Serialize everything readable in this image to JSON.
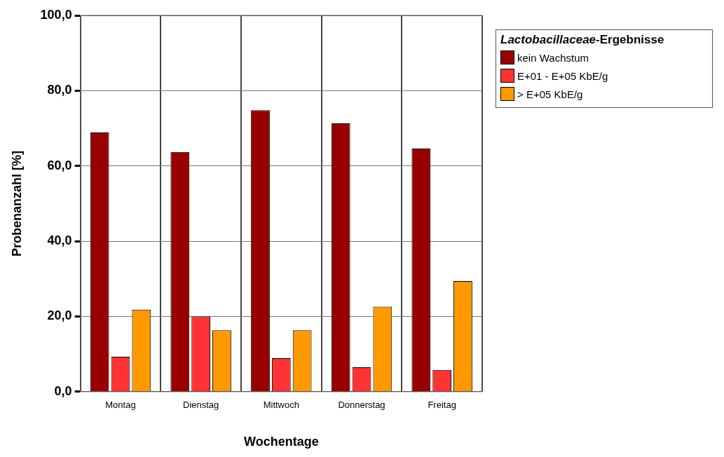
{
  "chart_data": {
    "type": "bar",
    "xlabel": "Wochentage",
    "ylabel": "Probenanzahl [%]",
    "legend_title": "Lactobacillaceae-Ergebnisse",
    "categories": [
      "Montag",
      "Dienstag",
      "Mittwoch",
      "Donnerstag",
      "Freitag"
    ],
    "series": [
      {
        "name": "kein Wachstum",
        "color": "#990000",
        "values": [
          68.9,
          63.7,
          74.8,
          71.3,
          64.6
        ]
      },
      {
        "name": "E+01 - E+05 KbE/g",
        "color": "#ff3333",
        "values": [
          9.3,
          20.0,
          8.9,
          6.5,
          5.8
        ]
      },
      {
        "name": "> E+05 KbE/g",
        "color": "#ff9900",
        "values": [
          21.8,
          16.3,
          16.3,
          22.6,
          29.4
        ]
      }
    ],
    "ylim": [
      0,
      100
    ],
    "yticks": [
      {
        "value": 0,
        "label": "0,0"
      },
      {
        "value": 20,
        "label": "20,0"
      },
      {
        "value": 40,
        "label": "40,0"
      },
      {
        "value": 60,
        "label": "60,0"
      },
      {
        "value": 80,
        "label": "80,0"
      },
      {
        "value": 100,
        "label": "100,0"
      }
    ],
    "grid": true,
    "legend": "top right"
  }
}
